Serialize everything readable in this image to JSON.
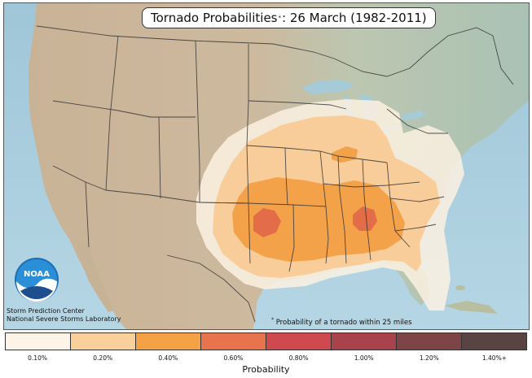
{
  "title": {
    "main": "Tornado Probabilities",
    "marker": "*",
    "rest": ": 26 March (1982-2011)"
  },
  "credits": {
    "line1": "Storm Prediction Center",
    "line2": "National Severe Storms Laboratory"
  },
  "logo": {
    "text": "NOAA"
  },
  "footnote": {
    "marker": "*",
    "text": "Probability of a tornado within 25 miles"
  },
  "legend": {
    "title": "Probability",
    "bins": [
      {
        "label": "0.10%",
        "color": "#fdf3e6"
      },
      {
        "label": "0.20%",
        "color": "#f9cf9c"
      },
      {
        "label": "0.40%",
        "color": "#f5a145"
      },
      {
        "label": "0.60%",
        "color": "#e8744d"
      },
      {
        "label": "0.80%",
        "color": "#cf4a4f"
      },
      {
        "label": "1.00%",
        "color": "#a8434c"
      },
      {
        "label": "1.20%",
        "color": "#7d4546"
      },
      {
        "label": "1.40%+",
        "color": "#5a4443"
      }
    ]
  },
  "colors": {
    "ocean": "#a9cfe0",
    "land_west": "#cdb89c",
    "land_east": "#b8c9b4",
    "canada": "#a8c3b8",
    "mexico": "#c8b393"
  }
}
